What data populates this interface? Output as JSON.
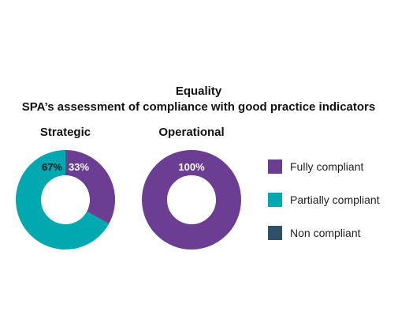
{
  "chart_data": {
    "type": "pie",
    "title": "Equality",
    "subtitle": "SPA’s assessment of compliance with good practice indicators",
    "legend": {
      "placement": "right",
      "entries": [
        {
          "label": "Fully compliant",
          "color": "#6B3D93"
        },
        {
          "label": "Partially compliant",
          "color": "#00A9B0"
        },
        {
          "label": "Non compliant",
          "color": "#2E5168"
        }
      ]
    },
    "charts": [
      {
        "title": "Strategic",
        "slices": [
          {
            "label": "Fully compliant",
            "value": 33,
            "value_label": "33%"
          },
          {
            "label": "Partially compliant",
            "value": 67,
            "value_label": "67%"
          }
        ]
      },
      {
        "title": "Operational",
        "slices": [
          {
            "label": "Fully compliant",
            "value": 100,
            "value_label": "100%"
          }
        ]
      }
    ]
  }
}
